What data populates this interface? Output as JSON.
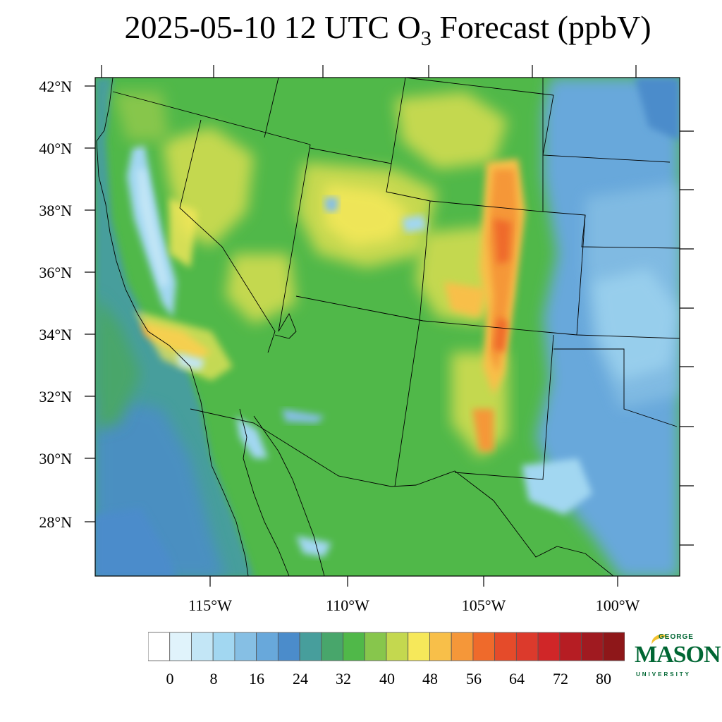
{
  "title": {
    "prefix": "2025-05-10 12 UTC O",
    "subscript": "3",
    "suffix": " Forecast (ppbV)"
  },
  "map": {
    "lat_labels": [
      "42°N",
      "40°N",
      "38°N",
      "36°N",
      "34°N",
      "32°N",
      "30°N",
      "28°N"
    ],
    "lon_labels": [
      "115°W",
      "110°W",
      "105°W",
      "100°W"
    ],
    "region": "Western United States and northwestern Mexico",
    "features": "ozone concentration field with state and country boundaries and coastlines"
  },
  "colorbar": {
    "labels": [
      "0",
      "8",
      "16",
      "24",
      "32",
      "40",
      "48",
      "56",
      "64",
      "72",
      "80"
    ],
    "colors": [
      "#ffffff",
      "#e0f3fb",
      "#c3e6f6",
      "#a2d7f1",
      "#86bfe4",
      "#68a8db",
      "#4b8ccb",
      "#479e9c",
      "#48a66b",
      "#50b849",
      "#87c64c",
      "#c4d84f",
      "#f6e85a",
      "#f8bf49",
      "#f59739",
      "#ef6a2b",
      "#e54b2a",
      "#dc3a2c",
      "#d02628",
      "#b61d23",
      "#a01a20",
      "#8e1719"
    ]
  },
  "logo": {
    "top": "GEORGE",
    "main": "MASON",
    "bottom": "UNIVERSITY"
  }
}
